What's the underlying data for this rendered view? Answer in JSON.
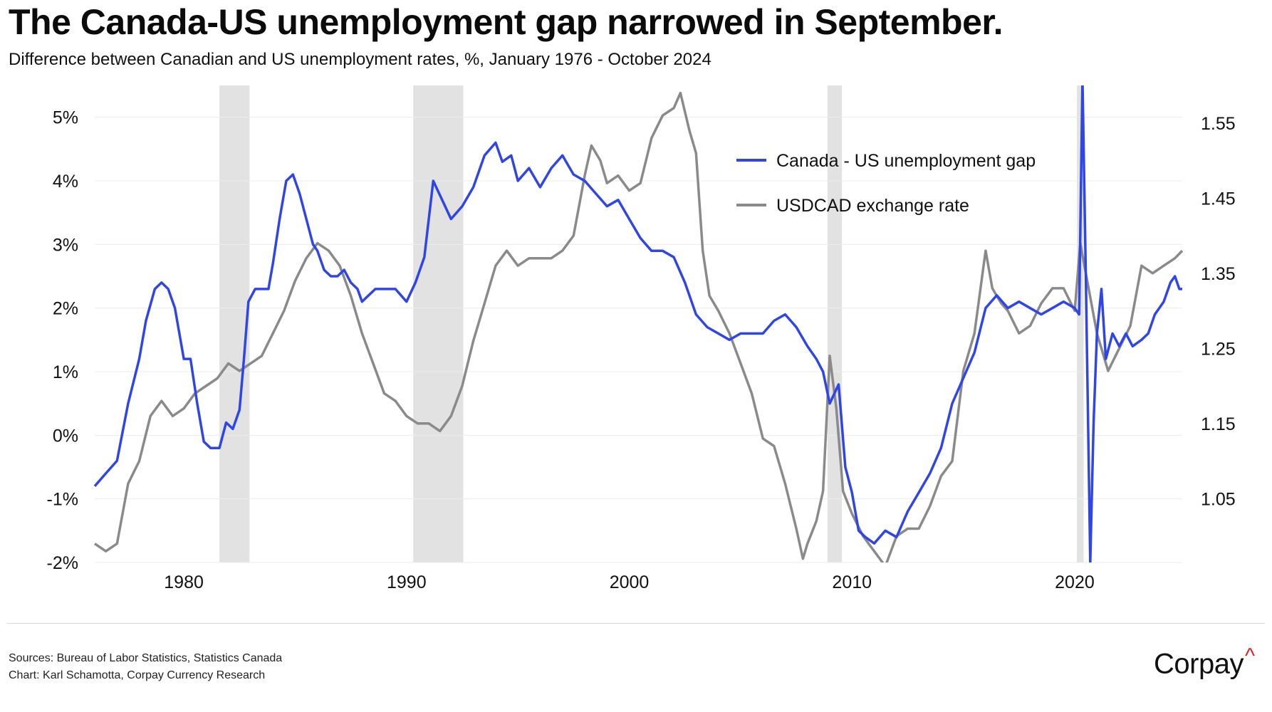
{
  "header": {
    "title": "The Canada-US unemployment gap narrowed in September.",
    "subtitle": "Difference between Canadian and US unemployment rates, %, January 1976 - October 2024"
  },
  "footer": {
    "sources": "Sources: Bureau of Labor Statistics, Statistics Canada",
    "chart_credit": "Chart: Karl Schamotta, Corpay Currency Research",
    "brand": "Corpay",
    "brand_mark": "^"
  },
  "chart_data": {
    "type": "line",
    "title": "The Canada-US unemployment gap narrowed in September.",
    "subtitle": "Difference between Canadian and US unemployment rates, %, January 1976 - October 2024",
    "x_range": [
      1976.0,
      2024.83
    ],
    "x_ticks": [
      1980,
      1990,
      2000,
      2010,
      2020
    ],
    "x_tick_labels": [
      "1980",
      "1990",
      "2000",
      "2010",
      "2020"
    ],
    "y_left": {
      "range": [
        -2,
        5.5
      ],
      "ticks": [
        -2,
        -1,
        0,
        1,
        2,
        3,
        4,
        5
      ],
      "tick_labels": [
        "-2%",
        "-1%",
        "0%",
        "1%",
        "2%",
        "3%",
        "4%",
        "5%"
      ]
    },
    "y_right": {
      "range": [
        0.965,
        1.6
      ],
      "ticks": [
        1.05,
        1.15,
        1.25,
        1.35,
        1.45,
        1.55
      ],
      "tick_labels": [
        "1.05",
        "1.15",
        "1.25",
        "1.35",
        "1.45",
        "1.55"
      ]
    },
    "grid": true,
    "legend_position": "top-right",
    "recessions": [
      [
        1981.6,
        1982.95
      ],
      [
        1990.3,
        1992.55
      ],
      [
        2008.9,
        2009.55
      ],
      [
        2020.1,
        2020.4
      ]
    ],
    "series": [
      {
        "name": "Canada - US unemployment gap",
        "axis": "left",
        "color": "#2f45e8",
        "x": [
          1976.0,
          1976.5,
          1977.0,
          1977.5,
          1978.0,
          1978.3,
          1978.7,
          1979.0,
          1979.3,
          1979.6,
          1980.0,
          1980.3,
          1980.6,
          1980.9,
          1981.2,
          1981.6,
          1981.9,
          1982.2,
          1982.5,
          1982.7,
          1982.9,
          1983.2,
          1983.5,
          1983.8,
          1984.0,
          1984.3,
          1984.6,
          1984.9,
          1985.2,
          1985.5,
          1985.8,
          1986.0,
          1986.3,
          1986.6,
          1986.9,
          1987.2,
          1987.5,
          1987.8,
          1988.0,
          1988.3,
          1988.6,
          1989.0,
          1989.5,
          1990.0,
          1990.4,
          1990.8,
          1991.2,
          1991.6,
          1992.0,
          1992.5,
          1993.0,
          1993.5,
          1994.0,
          1994.3,
          1994.7,
          1995.0,
          1995.5,
          1996.0,
          1996.5,
          1997.0,
          1997.5,
          1998.0,
          1998.5,
          1999.0,
          1999.5,
          2000.0,
          2000.5,
          2001.0,
          2001.5,
          2002.0,
          2002.5,
          2003.0,
          2003.5,
          2004.0,
          2004.5,
          2005.0,
          2005.5,
          2006.0,
          2006.5,
          2007.0,
          2007.5,
          2008.0,
          2008.4,
          2008.7,
          2009.0,
          2009.4,
          2009.7,
          2010.0,
          2010.3,
          2010.6,
          2011.0,
          2011.5,
          2012.0,
          2012.5,
          2013.0,
          2013.5,
          2014.0,
          2014.5,
          2015.0,
          2015.5,
          2016.0,
          2016.5,
          2017.0,
          2017.5,
          2018.0,
          2018.5,
          2019.0,
          2019.5,
          2020.0,
          2020.2,
          2020.35,
          2020.5,
          2020.7,
          2020.85,
          2021.0,
          2021.2,
          2021.4,
          2021.7,
          2022.0,
          2022.3,
          2022.6,
          2023.0,
          2023.3,
          2023.6,
          2024.0,
          2024.3,
          2024.5,
          2024.7,
          2024.83
        ],
        "values": [
          -0.8,
          -0.6,
          -0.4,
          0.5,
          1.2,
          1.8,
          2.3,
          2.4,
          2.3,
          2.0,
          1.2,
          1.2,
          0.5,
          -0.1,
          -0.2,
          -0.2,
          0.2,
          0.1,
          0.4,
          1.2,
          2.1,
          2.3,
          2.3,
          2.3,
          2.7,
          3.4,
          4.0,
          4.1,
          3.8,
          3.4,
          3.0,
          2.9,
          2.6,
          2.5,
          2.5,
          2.6,
          2.4,
          2.3,
          2.1,
          2.2,
          2.3,
          2.3,
          2.3,
          2.1,
          2.4,
          2.8,
          4.0,
          3.7,
          3.4,
          3.6,
          3.9,
          4.4,
          4.6,
          4.3,
          4.4,
          4.0,
          4.2,
          3.9,
          4.2,
          4.4,
          4.1,
          4.0,
          3.8,
          3.6,
          3.7,
          3.4,
          3.1,
          2.9,
          2.9,
          2.8,
          2.4,
          1.9,
          1.7,
          1.6,
          1.5,
          1.6,
          1.6,
          1.6,
          1.8,
          1.9,
          1.7,
          1.4,
          1.2,
          1.0,
          0.5,
          0.8,
          -0.5,
          -0.9,
          -1.5,
          -1.6,
          -1.7,
          -1.5,
          -1.6,
          -1.2,
          -0.9,
          -0.6,
          -0.2,
          0.5,
          0.9,
          1.3,
          2.0,
          2.2,
          2.0,
          2.1,
          2.0,
          1.9,
          2.0,
          2.1,
          2.0,
          1.9,
          5.6,
          2.5,
          -2.0,
          0.2,
          1.6,
          2.3,
          1.2,
          1.6,
          1.4,
          1.6,
          1.4,
          1.5,
          1.6,
          1.9,
          2.1,
          2.4,
          2.5,
          2.3,
          2.3
        ]
      },
      {
        "name": "USDCAD exchange rate",
        "axis": "right",
        "color": "#8a8a8a",
        "x": [
          1976.0,
          1976.5,
          1977.0,
          1977.5,
          1978.0,
          1978.5,
          1979.0,
          1979.5,
          1980.0,
          1980.5,
          1981.0,
          1981.5,
          1982.0,
          1982.5,
          1983.0,
          1983.5,
          1984.0,
          1984.5,
          1985.0,
          1985.5,
          1986.0,
          1986.5,
          1987.0,
          1987.5,
          1988.0,
          1988.5,
          1989.0,
          1989.5,
          1990.0,
          1990.5,
          1991.0,
          1991.5,
          1992.0,
          1992.5,
          1993.0,
          1993.5,
          1994.0,
          1994.5,
          1995.0,
          1995.5,
          1996.0,
          1996.5,
          1997.0,
          1997.5,
          1998.0,
          1998.3,
          1998.7,
          1999.0,
          1999.5,
          2000.0,
          2000.5,
          2001.0,
          2001.5,
          2002.0,
          2002.3,
          2002.7,
          2003.0,
          2003.3,
          2003.6,
          2004.0,
          2004.5,
          2005.0,
          2005.5,
          2006.0,
          2006.5,
          2007.0,
          2007.5,
          2007.8,
          2008.0,
          2008.4,
          2008.7,
          2009.0,
          2009.3,
          2009.6,
          2010.0,
          2010.5,
          2011.0,
          2011.5,
          2012.0,
          2012.5,
          2013.0,
          2013.5,
          2014.0,
          2014.5,
          2015.0,
          2015.5,
          2016.0,
          2016.3,
          2016.7,
          2017.0,
          2017.5,
          2018.0,
          2018.5,
          2019.0,
          2019.5,
          2020.0,
          2020.25,
          2020.5,
          2021.0,
          2021.5,
          2022.0,
          2022.5,
          2023.0,
          2023.5,
          2024.0,
          2024.5,
          2024.83
        ],
        "values": [
          0.99,
          0.98,
          0.99,
          1.07,
          1.1,
          1.16,
          1.18,
          1.16,
          1.17,
          1.19,
          1.2,
          1.21,
          1.23,
          1.22,
          1.23,
          1.24,
          1.27,
          1.3,
          1.34,
          1.37,
          1.39,
          1.38,
          1.36,
          1.32,
          1.27,
          1.23,
          1.19,
          1.18,
          1.16,
          1.15,
          1.15,
          1.14,
          1.16,
          1.2,
          1.26,
          1.31,
          1.36,
          1.38,
          1.36,
          1.37,
          1.37,
          1.37,
          1.38,
          1.4,
          1.48,
          1.52,
          1.5,
          1.47,
          1.48,
          1.46,
          1.47,
          1.53,
          1.56,
          1.57,
          1.59,
          1.54,
          1.51,
          1.38,
          1.32,
          1.3,
          1.27,
          1.23,
          1.19,
          1.13,
          1.12,
          1.07,
          1.01,
          0.97,
          0.99,
          1.02,
          1.06,
          1.24,
          1.17,
          1.06,
          1.03,
          1.0,
          0.98,
          0.96,
          1.0,
          1.01,
          1.01,
          1.04,
          1.08,
          1.1,
          1.22,
          1.27,
          1.38,
          1.33,
          1.31,
          1.3,
          1.27,
          1.28,
          1.31,
          1.33,
          1.33,
          1.3,
          1.39,
          1.35,
          1.27,
          1.22,
          1.25,
          1.28,
          1.36,
          1.35,
          1.36,
          1.37,
          1.38
        ]
      }
    ]
  }
}
